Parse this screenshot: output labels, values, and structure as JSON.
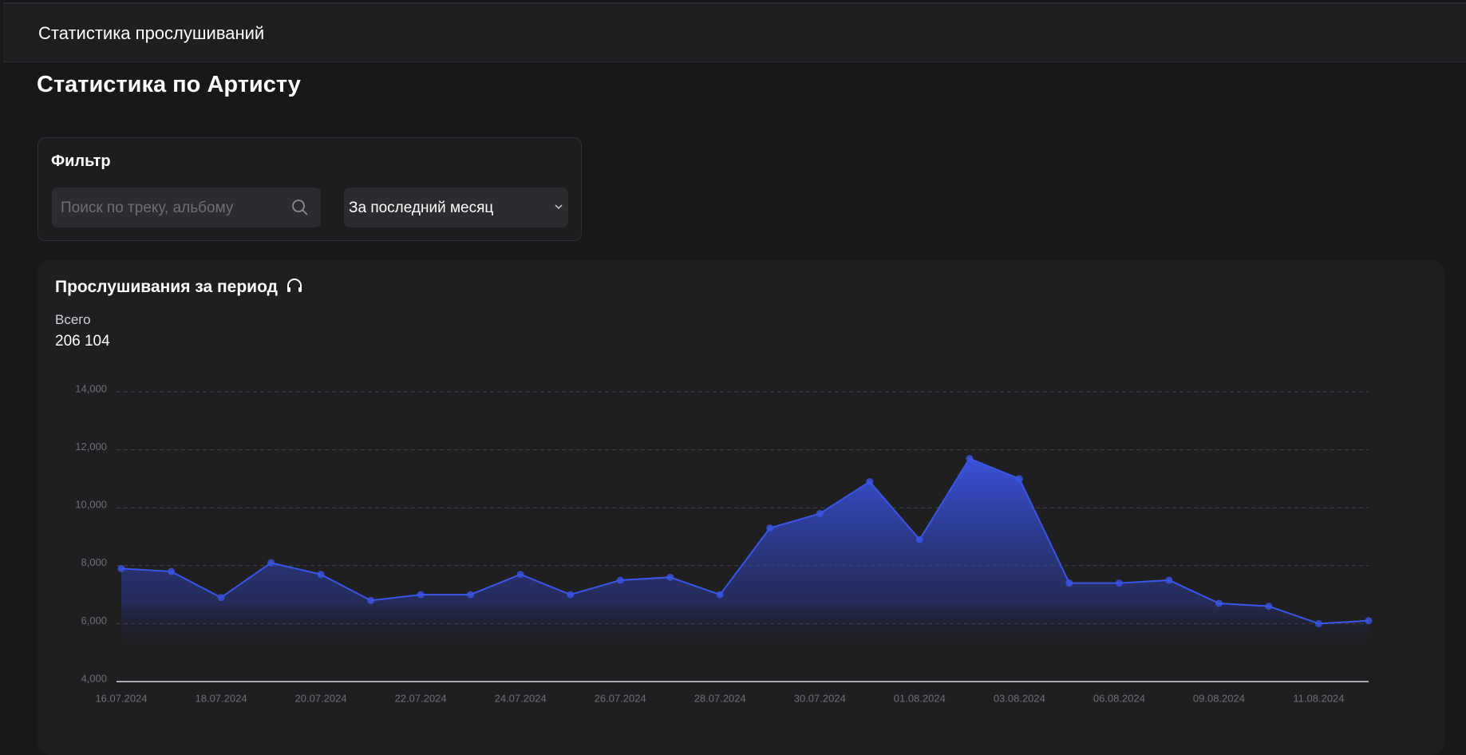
{
  "header": {
    "title": "Статистика прослушиваний"
  },
  "page_title": "Статистика по Артисту",
  "filter": {
    "title": "Фильтр",
    "search_placeholder": "Поиск по треку, альбому",
    "period": "За последний месяц"
  },
  "chart_data": {
    "type": "area",
    "title": "Прослушивания за период",
    "total_label": "Всего",
    "total": "206 104",
    "categories": [
      "16.07.2024",
      null,
      "18.07.2024",
      null,
      "20.07.2024",
      null,
      "22.07.2024",
      null,
      "24.07.2024",
      null,
      "26.07.2024",
      null,
      "28.07.2024",
      null,
      "30.07.2024",
      null,
      "01.08.2024",
      null,
      "03.08.2024",
      null,
      "06.08.2024",
      null,
      "09.08.2024",
      null,
      "11.08.2024",
      null
    ],
    "values": [
      7900,
      7800,
      6900,
      8100,
      7700,
      6800,
      7000,
      7000,
      7700,
      7000,
      7500,
      7600,
      7000,
      9300,
      9800,
      10900,
      8900,
      11700,
      11000,
      7400,
      7400,
      7500,
      6700,
      6600,
      6000,
      6100
    ],
    "color": "#3b55e6",
    "ylim": [
      4000,
      14000
    ],
    "yticks": [
      {
        "value": 4000,
        "label": "4,000"
      },
      {
        "value": 6000,
        "label": "6,000"
      },
      {
        "value": 8000,
        "label": "8,000"
      },
      {
        "value": 10000,
        "label": "10,000"
      },
      {
        "value": 12000,
        "label": "12,000"
      },
      {
        "value": 14000,
        "label": "14,000"
      }
    ],
    "grid": true
  }
}
